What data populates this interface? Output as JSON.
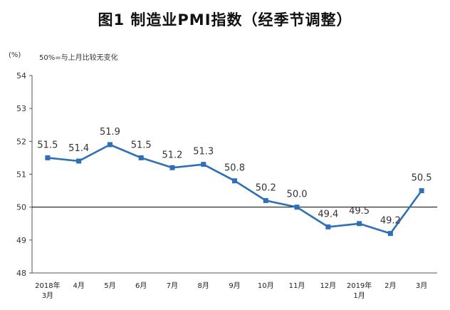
{
  "title": "图1 制造业PMI指数（经季节调整）",
  "unit_label": "(%)",
  "note": "50%=与上月比较无变化",
  "colors": {
    "line": "#2f6fb5",
    "axis": "#555555",
    "ref": "#000000"
  },
  "chart_data": {
    "type": "line",
    "title": "图1 制造业PMI指数（经季节调整）",
    "ylabel": "(%)",
    "ylim": [
      48,
      54
    ],
    "yticks": [
      "54",
      "53",
      "52",
      "51",
      "50",
      "49",
      "48"
    ],
    "reference_line": 50,
    "categories": [
      [
        "2018年",
        "3月"
      ],
      [
        "4月"
      ],
      [
        "5月"
      ],
      [
        "6月"
      ],
      [
        "7月"
      ],
      [
        "8月"
      ],
      [
        "9月"
      ],
      [
        "10月"
      ],
      [
        "11月"
      ],
      [
        "12月"
      ],
      [
        "2019年",
        "1月"
      ],
      [
        "2月"
      ],
      [
        "3月"
      ]
    ],
    "values": [
      51.5,
      51.4,
      51.9,
      51.5,
      51.2,
      51.3,
      50.8,
      50.2,
      50.0,
      49.4,
      49.5,
      49.2,
      50.5
    ],
    "labels": [
      "51.5",
      "51.4",
      "51.9",
      "51.5",
      "51.2",
      "51.3",
      "50.8",
      "50.2",
      "50.0",
      "49.4",
      "49.5",
      "49.2",
      "50.5"
    ]
  }
}
